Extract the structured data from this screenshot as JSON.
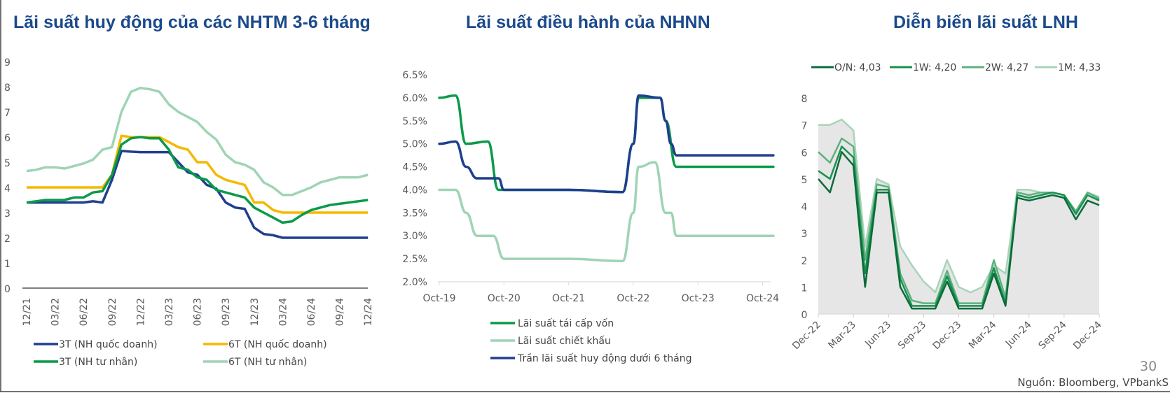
{
  "colors": {
    "title": "#1b4a8c",
    "blue": "#1f3f8f",
    "yellow": "#f5b800",
    "green": "#0a9a4a",
    "light_green": "#9fd4b4"
  },
  "footer": {
    "page_number": "30",
    "source": "Nguồn: Bloomberg, VPbankS"
  },
  "chart_data": [
    {
      "type": "line",
      "title": "Lãi suất huy động của các NHTM 3-6 tháng",
      "ylim": [
        0,
        9
      ],
      "yticks": [
        "0",
        "1",
        "2",
        "3",
        "4",
        "5",
        "6",
        "7",
        "8",
        "9"
      ],
      "x": [
        "12/21",
        "01/22",
        "02/22",
        "03/22",
        "04/22",
        "05/22",
        "06/22",
        "07/22",
        "08/22",
        "09/22",
        "10/22",
        "11/22",
        "12/22",
        "01/23",
        "02/23",
        "03/23",
        "04/23",
        "05/23",
        "06/23",
        "07/23",
        "08/23",
        "09/23",
        "10/23",
        "11/23",
        "12/23",
        "01/24",
        "02/24",
        "03/24",
        "04/24",
        "05/24",
        "06/24",
        "07/24",
        "08/24",
        "09/24",
        "10/24",
        "11/24",
        "12/24"
      ],
      "xticks": [
        "12/21",
        "03/22",
        "06/22",
        "09/22",
        "12/22",
        "03/23",
        "06/23",
        "09/23",
        "12/23",
        "03/24",
        "06/24",
        "09/24",
        "12/24"
      ],
      "grid": false,
      "legend_position": "bottom",
      "series": [
        {
          "name": "3T (NH quốc doanh)",
          "color": "#1f3f8f",
          "values": [
            3.4,
            3.4,
            3.4,
            3.4,
            3.4,
            3.4,
            3.4,
            3.45,
            3.4,
            4.3,
            5.45,
            5.42,
            5.4,
            5.4,
            5.4,
            5.4,
            5.0,
            4.6,
            4.5,
            4.1,
            3.95,
            3.4,
            3.2,
            3.15,
            2.4,
            2.15,
            2.1,
            2.0,
            2.0,
            2.0,
            2.0,
            2.0,
            2.0,
            2.0,
            2.0,
            2.0,
            2.0
          ]
        },
        {
          "name": "6T (NH quốc doanh)",
          "color": "#f5b800",
          "values": [
            4.0,
            4.0,
            4.0,
            4.0,
            4.0,
            4.0,
            4.0,
            4.0,
            4.0,
            4.5,
            6.05,
            6.0,
            6.0,
            6.0,
            6.0,
            5.8,
            5.6,
            5.5,
            5.0,
            5.0,
            4.5,
            4.3,
            4.2,
            4.1,
            3.4,
            3.4,
            3.1,
            3.0,
            3.0,
            3.0,
            3.0,
            3.0,
            3.0,
            3.0,
            3.0,
            3.0,
            3.0
          ]
        },
        {
          "name": "3T (NH tư nhân)",
          "color": "#0a9a4a",
          "values": [
            3.4,
            3.45,
            3.5,
            3.5,
            3.5,
            3.6,
            3.6,
            3.8,
            3.85,
            4.5,
            5.7,
            5.95,
            6.0,
            5.95,
            5.95,
            5.5,
            4.8,
            4.7,
            4.4,
            4.3,
            3.9,
            3.8,
            3.7,
            3.6,
            3.2,
            3.0,
            2.8,
            2.6,
            2.65,
            2.9,
            3.1,
            3.2,
            3.3,
            3.35,
            3.4,
            3.45,
            3.5
          ]
        },
        {
          "name": "6T (NH tư nhân)",
          "color": "#9fd4b4",
          "values": [
            4.65,
            4.7,
            4.8,
            4.8,
            4.75,
            4.85,
            4.95,
            5.1,
            5.5,
            5.6,
            7.0,
            7.8,
            7.95,
            7.9,
            7.8,
            7.3,
            7.0,
            6.8,
            6.6,
            6.2,
            5.9,
            5.3,
            5.0,
            4.9,
            4.7,
            4.2,
            4.0,
            3.7,
            3.7,
            3.85,
            4.0,
            4.2,
            4.3,
            4.4,
            4.4,
            4.4,
            4.5
          ]
        }
      ]
    },
    {
      "type": "line",
      "title": "Lãi suất điều hành của NHNN",
      "ylim": [
        2.0,
        6.5
      ],
      "yticks": [
        "2.0%",
        "2.5%",
        "3.0%",
        "3.5%",
        "4.0%",
        "4.5%",
        "5.0%",
        "5.5%",
        "6.0%",
        "6.5%"
      ],
      "xticks": [
        "Oct-19",
        "Oct-20",
        "Oct-21",
        "Oct-22",
        "Oct-23",
        "Oct-24"
      ],
      "grid": false,
      "legend_position": "bottom",
      "series": [
        {
          "name": "Lãi suất tái cấp vốn",
          "color": "#0a9a4a",
          "points": [
            [
              "2019-10",
              6.0
            ],
            [
              "2020-01",
              6.05
            ],
            [
              "2020-03",
              5.0
            ],
            [
              "2020-07",
              5.05
            ],
            [
              "2020-09",
              4.0
            ],
            [
              "2021-10",
              4.0
            ],
            [
              "2022-08",
              3.95
            ],
            [
              "2022-10",
              5.0
            ],
            [
              "2022-11",
              6.0
            ],
            [
              "2023-03",
              6.0
            ],
            [
              "2023-04",
              5.5
            ],
            [
              "2023-06",
              4.5
            ],
            [
              "2024-12",
              4.5
            ]
          ]
        },
        {
          "name": "Lãi suất chiết khấu",
          "color": "#9fd4b4",
          "points": [
            [
              "2019-10",
              4.0
            ],
            [
              "2020-01",
              4.0
            ],
            [
              "2020-03",
              3.5
            ],
            [
              "2020-05",
              3.0
            ],
            [
              "2020-08",
              3.0
            ],
            [
              "2020-10",
              2.5
            ],
            [
              "2021-10",
              2.5
            ],
            [
              "2022-08",
              2.45
            ],
            [
              "2022-10",
              3.5
            ],
            [
              "2022-11",
              4.5
            ],
            [
              "2023-02",
              4.6
            ],
            [
              "2023-04",
              3.5
            ],
            [
              "2023-05",
              3.5
            ],
            [
              "2023-06",
              3.0
            ],
            [
              "2024-12",
              3.0
            ]
          ]
        },
        {
          "name": "Trần lãi suất huy động dưới 6 tháng",
          "color": "#1f3f8f",
          "points": [
            [
              "2019-10",
              5.0
            ],
            [
              "2020-01",
              5.05
            ],
            [
              "2020-03",
              4.5
            ],
            [
              "2020-05",
              4.25
            ],
            [
              "2020-09",
              4.25
            ],
            [
              "2020-10",
              4.0
            ],
            [
              "2021-10",
              4.0
            ],
            [
              "2022-08",
              3.95
            ],
            [
              "2022-10",
              5.0
            ],
            [
              "2022-11",
              6.05
            ],
            [
              "2023-03",
              6.0
            ],
            [
              "2023-04",
              5.5
            ],
            [
              "2023-05",
              5.0
            ],
            [
              "2023-06",
              4.75
            ],
            [
              "2024-12",
              4.75
            ]
          ]
        }
      ]
    },
    {
      "type": "line",
      "title": "Diễn biến lãi suất LNH",
      "ylim": [
        0,
        8
      ],
      "yticks": [
        "0",
        "1",
        "2",
        "3",
        "4",
        "5",
        "6",
        "7",
        "8"
      ],
      "x": [
        "Dec-22",
        "Jan-23",
        "Feb-23",
        "Mar-23",
        "Apr-23",
        "May-23",
        "Jun-23",
        "Jul-23",
        "Aug-23",
        "Sep-23",
        "Oct-23",
        "Nov-23",
        "Dec-23",
        "Jan-24",
        "Feb-24",
        "Mar-24",
        "Apr-24",
        "May-24",
        "Jun-24",
        "Jul-24",
        "Aug-24",
        "Sep-24",
        "Oct-24",
        "Nov-24",
        "Dec-24"
      ],
      "xticks": [
        "Dec-22",
        "Mar-23",
        "Jun-23",
        "Sep-23",
        "Dec-23",
        "Mar-24",
        "Jun-24",
        "Sep-24",
        "Dec-24"
      ],
      "grid": false,
      "legend_position": "top",
      "series": [
        {
          "name": "O/N: 4,03",
          "color": "#0b6b3a",
          "values": [
            5.0,
            4.5,
            6.0,
            5.5,
            1.0,
            4.5,
            4.5,
            1.0,
            0.2,
            0.2,
            0.2,
            1.2,
            0.2,
            0.2,
            0.2,
            1.5,
            0.3,
            4.3,
            4.2,
            4.3,
            4.4,
            4.3,
            3.5,
            4.2,
            4.03
          ]
        },
        {
          "name": "1W: 4,20",
          "color": "#17914f",
          "values": [
            5.3,
            5.0,
            6.2,
            5.8,
            1.5,
            4.6,
            4.6,
            1.3,
            0.3,
            0.3,
            0.3,
            1.4,
            0.3,
            0.3,
            0.3,
            1.7,
            0.4,
            4.4,
            4.3,
            4.4,
            4.5,
            4.4,
            3.7,
            4.4,
            4.2
          ]
        },
        {
          "name": "2W: 4,27",
          "color": "#5fb07f",
          "values": [
            6.0,
            5.6,
            6.5,
            6.2,
            2.0,
            4.8,
            4.7,
            1.5,
            0.5,
            0.4,
            0.4,
            1.6,
            0.4,
            0.4,
            0.4,
            2.0,
            0.6,
            4.5,
            4.4,
            4.5,
            4.5,
            4.4,
            3.8,
            4.5,
            4.27
          ]
        },
        {
          "name": "1M: 4,33",
          "color": "#a8d5b8",
          "values": [
            7.0,
            7.0,
            7.2,
            6.8,
            2.5,
            5.0,
            4.8,
            2.5,
            1.8,
            1.2,
            0.8,
            2.0,
            1.0,
            0.8,
            1.0,
            1.8,
            1.5,
            4.6,
            4.6,
            4.5,
            4.5,
            4.4,
            3.8,
            4.5,
            4.33
          ]
        }
      ]
    }
  ]
}
